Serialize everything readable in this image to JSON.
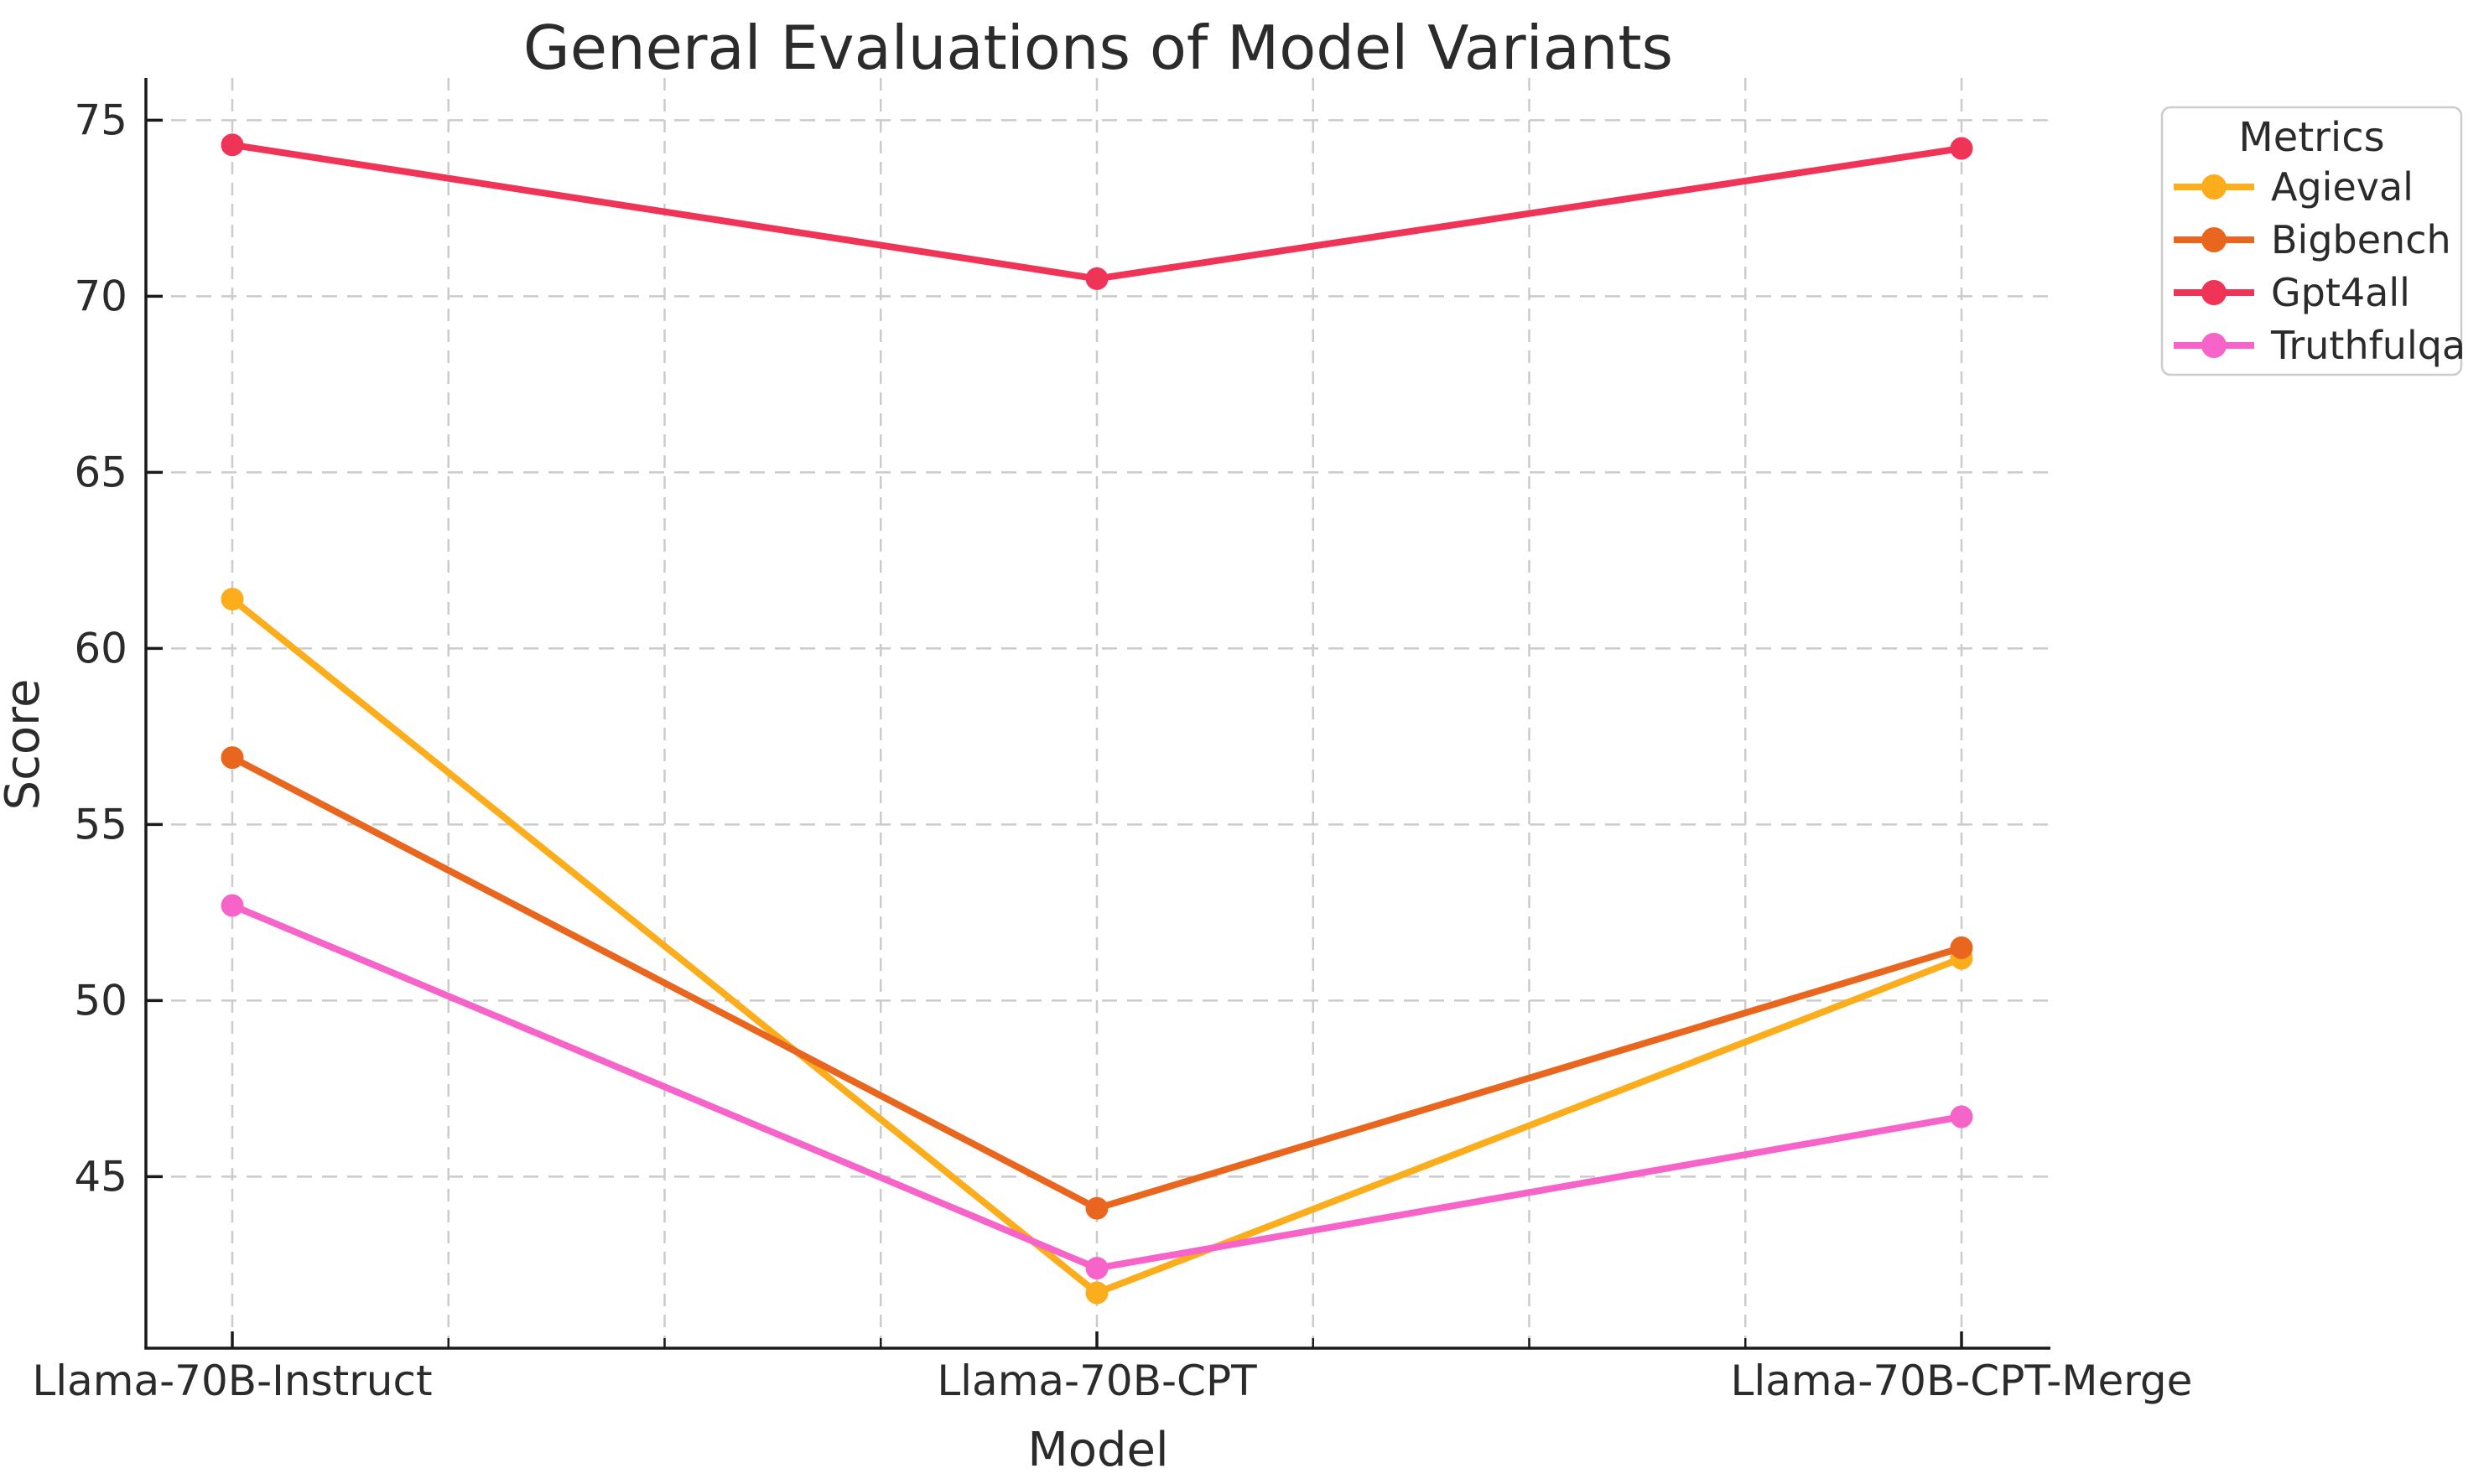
{
  "figure": {
    "title": "General Evaluations of Model Variants",
    "background_color": "#ffffff"
  },
  "chart_data": {
    "type": "line",
    "title": "General Evaluations of Model Variants",
    "xlabel": "Model",
    "ylabel": "Score",
    "categories": [
      "Llama-70B-Instruct",
      "Llama-70B-CPT",
      "Llama-70B-CPT-Merge"
    ],
    "series": [
      {
        "name": "Agieval",
        "color": "#FBAD1B",
        "values": [
          61.4,
          41.7,
          51.2
        ]
      },
      {
        "name": "Bigbench",
        "color": "#E9661F",
        "values": [
          56.9,
          44.1,
          51.5
        ]
      },
      {
        "name": "Gpt4all",
        "color": "#EF3457",
        "values": [
          74.3,
          70.5,
          74.2
        ]
      },
      {
        "name": "Truthfulqa",
        "color": "#F664C9",
        "values": [
          52.7,
          42.4,
          46.7
        ]
      }
    ],
    "ylim": [
      40.1,
      76.2
    ],
    "yticks": [
      45,
      50,
      55,
      60,
      65,
      70,
      75
    ],
    "grid": {
      "horizontal": "major-only",
      "vertical": "major-plus-quarter-minor",
      "line_style": "dashed",
      "color": "#cbcbcb"
    },
    "legend": {
      "title": "Metrics",
      "entries": [
        "Agieval",
        "Bigbench",
        "Gpt4all",
        "Truthfulqa"
      ],
      "position": "outside-upper-right",
      "border_color": "#cccccc"
    },
    "marker": "circle",
    "text_color": "#2b2b2b",
    "spine_color": "#1a1a1a"
  }
}
